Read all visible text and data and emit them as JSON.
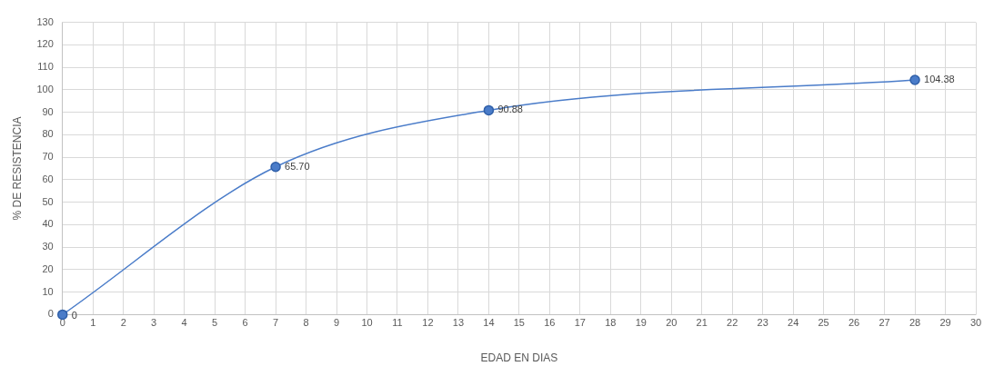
{
  "chart_data": {
    "type": "line",
    "xlabel": "EDAD EN DIAS",
    "ylabel": "% DE RESISTENCIA",
    "x": [
      0,
      7,
      14,
      28
    ],
    "series": [
      {
        "color": "#4a7cc9",
        "values": [
          0,
          65.7,
          90.88,
          104.38
        ],
        "value_labels": [
          "0",
          "65.70",
          "90.88",
          "104.38"
        ]
      }
    ],
    "xlim": [
      0,
      30
    ],
    "xticks": [
      0,
      1,
      2,
      3,
      4,
      5,
      6,
      7,
      8,
      9,
      10,
      11,
      12,
      13,
      14,
      15,
      16,
      17,
      18,
      19,
      20,
      21,
      22,
      23,
      24,
      25,
      26,
      27,
      28,
      29,
      30
    ],
    "ylim": [
      0,
      130
    ],
    "yticks": [
      0,
      10,
      20,
      30,
      40,
      50,
      60,
      70,
      80,
      90,
      100,
      110,
      120,
      130
    ],
    "grid": true,
    "legend": false,
    "marker": "circle",
    "line_style": "solid"
  }
}
